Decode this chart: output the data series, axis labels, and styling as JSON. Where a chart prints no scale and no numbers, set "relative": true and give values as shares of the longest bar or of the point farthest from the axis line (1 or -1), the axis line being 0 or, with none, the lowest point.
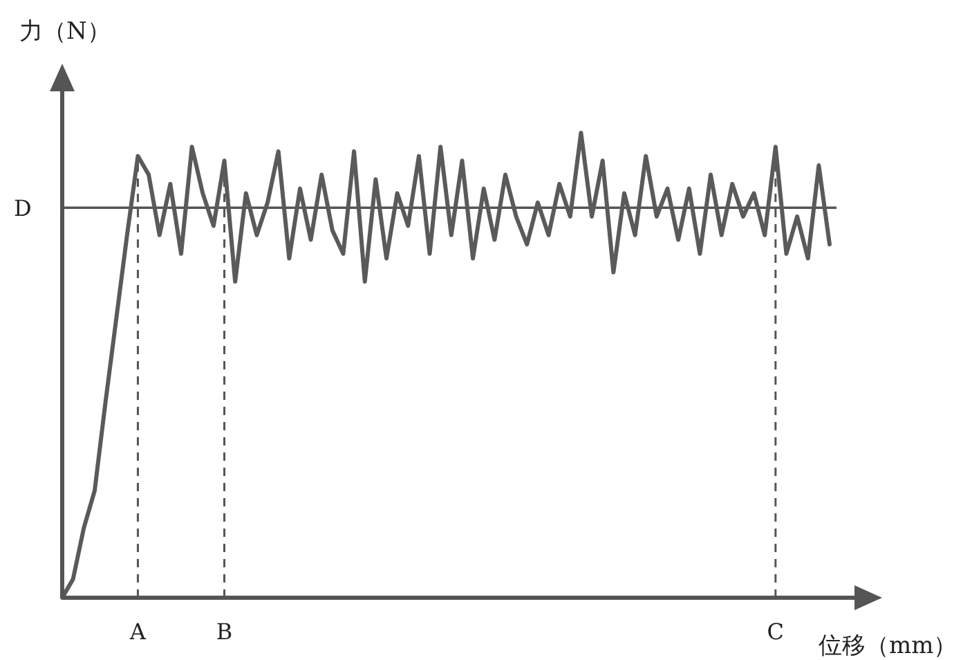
{
  "chart_data": {
    "type": "line",
    "relative": true,
    "xlabel": "位移（mm）",
    "ylabel": "力（N）",
    "line_style": "solid",
    "categories": [
      null,
      null,
      null,
      null,
      null,
      null,
      null,
      "A",
      null,
      null,
      null,
      null,
      null,
      null,
      null,
      "B",
      null,
      null,
      null,
      null,
      null,
      null,
      null,
      null,
      null,
      null,
      null,
      null,
      null,
      null,
      null,
      null,
      null,
      null,
      null,
      null,
      null,
      null,
      null,
      null,
      null,
      null,
      null,
      null,
      null,
      null,
      null,
      null,
      null,
      null,
      null,
      null,
      null,
      null,
      null,
      null,
      null,
      null,
      null,
      null,
      null,
      null,
      null,
      null,
      null,
      null,
      "C",
      null,
      null,
      null,
      null,
      null
    ],
    "series": [
      {
        "color": "#5a5a5a",
        "values": [
          0,
          0.04,
          0.15,
          0.23,
          0.42,
          0.6,
          0.78,
          0.95,
          0.91,
          0.78,
          0.89,
          0.74,
          0.97,
          0.87,
          0.8,
          0.94,
          0.68,
          0.87,
          0.78,
          0.85,
          0.96,
          0.73,
          0.88,
          0.77,
          0.91,
          0.79,
          0.74,
          0.96,
          0.68,
          0.9,
          0.73,
          0.87,
          0.8,
          0.95,
          0.74,
          0.97,
          0.78,
          0.94,
          0.73,
          0.88,
          0.77,
          0.91,
          0.82,
          0.76,
          0.85,
          0.78,
          0.89,
          0.82,
          1,
          0.82,
          0.94,
          0.7,
          0.87,
          0.78,
          0.95,
          0.82,
          0.88,
          0.77,
          0.88,
          0.74,
          0.91,
          0.78,
          0.89,
          0.82,
          0.87,
          0.78,
          0.97,
          0.74,
          0.82,
          0.73,
          0.93,
          0.76
        ]
      }
    ],
    "ref_lines": [
      {
        "axis": "x",
        "value": "A",
        "line_style": "dashed"
      },
      {
        "axis": "x",
        "value": "B",
        "line_style": "dashed"
      },
      {
        "axis": "x",
        "value": "C",
        "line_style": "dashed"
      },
      {
        "axis": "y",
        "value": 0.839,
        "label": "D",
        "line_style": "solid"
      }
    ]
  }
}
